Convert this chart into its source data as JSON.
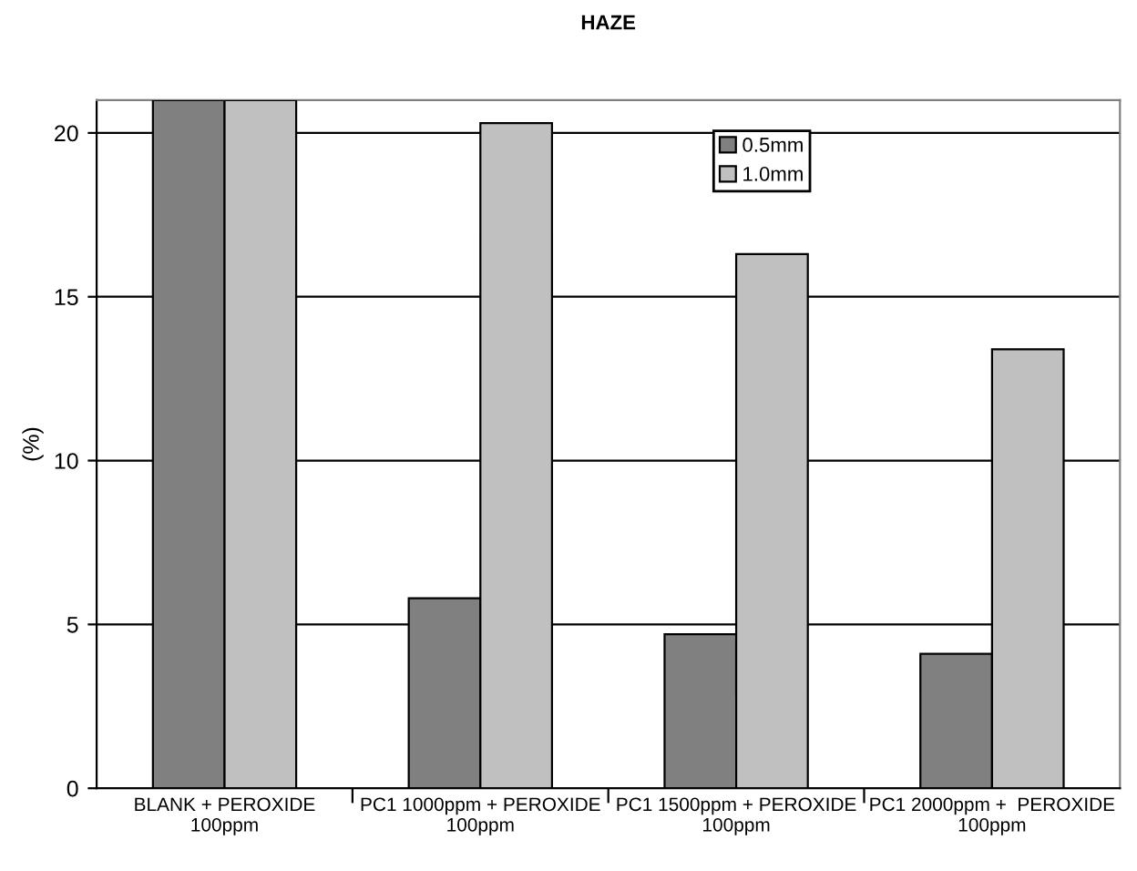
{
  "chart_data": {
    "type": "bar",
    "title": "HAZE",
    "ylabel": "(%)",
    "categories": [
      "BLANK + PEROXIDE\n100ppm",
      "PC1 1000ppm + PEROXIDE\n100ppm",
      "PC1 1500ppm + PEROXIDE\n100ppm",
      "PC1 2000ppm +  PEROXIDE\n100ppm"
    ],
    "series": [
      {
        "name": "0.5mm",
        "color": "#808080",
        "values": [
          21,
          5.8,
          4.7,
          4.1
        ]
      },
      {
        "name": "1.0mm",
        "color": "#c0c0c0",
        "values": [
          21,
          20.3,
          16.3,
          13.4
        ]
      }
    ],
    "ylim": [
      0,
      21
    ],
    "yticks": [
      0,
      5,
      10,
      15,
      20
    ],
    "grid": "y",
    "legend": "top"
  }
}
